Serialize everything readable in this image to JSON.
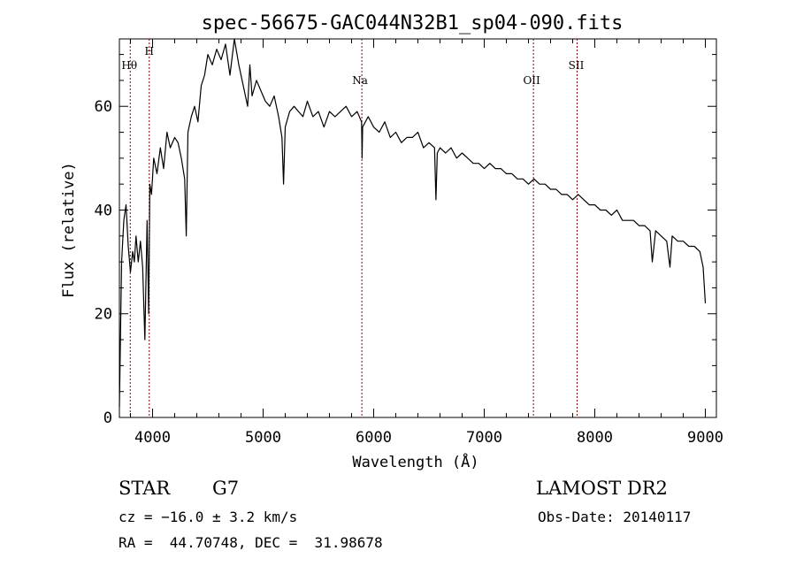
{
  "chart_data": {
    "type": "line",
    "title": "spec-56675-GAC044N32B1_sp04-090.fits",
    "xlabel": "Wavelength (Å)",
    "ylabel": "Flux (relative)",
    "xlim": [
      3700,
      9100
    ],
    "ylim": [
      0,
      73
    ],
    "xticks": [
      4000,
      5000,
      6000,
      7000,
      8000,
      9000
    ],
    "yticks": [
      0,
      20,
      40,
      60
    ],
    "grid": false,
    "line_color": "#000000",
    "marker_color": "#8b0000",
    "series": [
      {
        "x": [
          3700,
          3720,
          3740,
          3760,
          3780,
          3800,
          3820,
          3835,
          3850,
          3870,
          3890,
          3910,
          3930,
          3950,
          3965,
          3975,
          3990,
          4010,
          4040,
          4070,
          4100,
          4130,
          4160,
          4200,
          4230,
          4260,
          4290,
          4305,
          4320,
          4350,
          4380,
          4410,
          4440,
          4470,
          4500,
          4540,
          4580,
          4620,
          4660,
          4700,
          4740,
          4780,
          4820,
          4860,
          4880,
          4900,
          4940,
          4980,
          5020,
          5060,
          5100,
          5140,
          5170,
          5185,
          5200,
          5240,
          5280,
          5320,
          5360,
          5400,
          5450,
          5500,
          5550,
          5600,
          5650,
          5700,
          5750,
          5800,
          5850,
          5890,
          5895,
          5900,
          5950,
          6000,
          6050,
          6100,
          6150,
          6200,
          6250,
          6300,
          6350,
          6400,
          6450,
          6500,
          6550,
          6563,
          6575,
          6600,
          6650,
          6700,
          6750,
          6800,
          6850,
          6900,
          6950,
          7000,
          7050,
          7100,
          7150,
          7200,
          7250,
          7300,
          7350,
          7400,
          7450,
          7500,
          7550,
          7600,
          7650,
          7700,
          7750,
          7800,
          7850,
          7900,
          7950,
          8000,
          8050,
          8100,
          8150,
          8200,
          8250,
          8300,
          8350,
          8400,
          8450,
          8500,
          8520,
          8550,
          8600,
          8650,
          8680,
          8700,
          8750,
          8800,
          8850,
          8900,
          8950,
          8980,
          9000
        ],
        "y": [
          2,
          30,
          38,
          41,
          33,
          28,
          32,
          30,
          35,
          30,
          34,
          29,
          15,
          38,
          20,
          45,
          43,
          50,
          47,
          52,
          48,
          55,
          52,
          54,
          53,
          50,
          46,
          35,
          55,
          58,
          60,
          57,
          64,
          66,
          70,
          68,
          71,
          69,
          72,
          66,
          73,
          68,
          64,
          60,
          68,
          62,
          65,
          63,
          61,
          60,
          62,
          58,
          54,
          45,
          56,
          59,
          60,
          59,
          58,
          61,
          58,
          59,
          56,
          59,
          58,
          59,
          60,
          58,
          59,
          57,
          50,
          56,
          58,
          56,
          55,
          57,
          54,
          55,
          53,
          54,
          54,
          55,
          52,
          53,
          52,
          42,
          51,
          52,
          51,
          52,
          50,
          51,
          50,
          49,
          49,
          48,
          49,
          48,
          48,
          47,
          47,
          46,
          46,
          45,
          46,
          45,
          45,
          44,
          44,
          43,
          43,
          42,
          43,
          42,
          41,
          41,
          40,
          40,
          39,
          40,
          38,
          38,
          38,
          37,
          37,
          36,
          30,
          36,
          35,
          34,
          29,
          35,
          34,
          34,
          33,
          33,
          32,
          29,
          22
        ]
      }
    ],
    "lines": [
      {
        "label": "Hθ",
        "x": 3798
      },
      {
        "label": "H",
        "x": 3970
      },
      {
        "label": "Na",
        "x": 5893
      },
      {
        "label": "OII",
        "x": 7445
      },
      {
        "label": "SII",
        "x": 7840
      }
    ]
  },
  "footer": {
    "object_class": "STAR",
    "subclass": "G7",
    "survey": "LAMOST DR2",
    "cz": "cz = −16.0 ± 3.2 km/s",
    "obs_date": "Obs-Date: 20140117",
    "coords": "RA =  44.70748, DEC =  31.98678"
  }
}
